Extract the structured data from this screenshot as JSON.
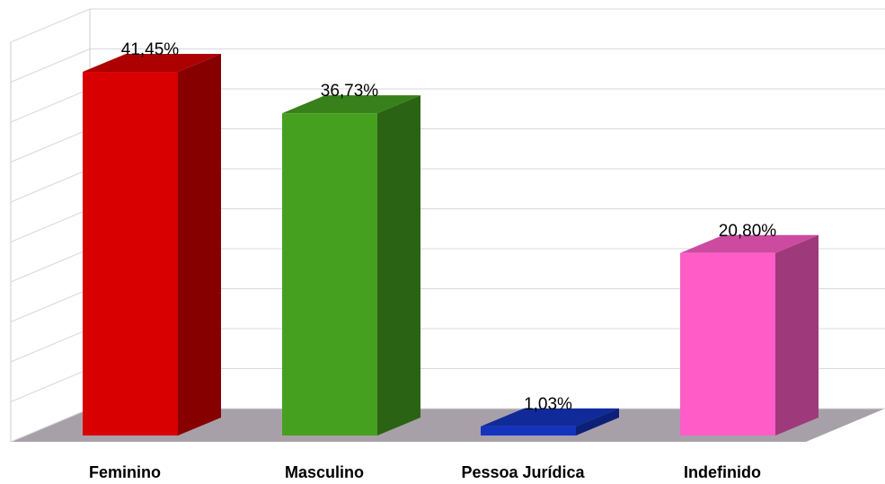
{
  "chart_data": {
    "type": "bar3d",
    "categories": [
      "Feminino",
      "Masculino",
      "Pessoa Jurídica",
      "Indefinido"
    ],
    "values": [
      41.45,
      36.73,
      1.03,
      20.8
    ],
    "value_labels": [
      "41,45%",
      "36,73%",
      "1,03%",
      "20,80%"
    ],
    "colors": [
      "#d80000",
      "#46a020",
      "#1434c0",
      "#ff5cc8"
    ],
    "ylim": [
      0,
      50
    ],
    "yticks": [
      0,
      5,
      10,
      15,
      20,
      25,
      30,
      35,
      40,
      45,
      50
    ],
    "grid": true
  }
}
